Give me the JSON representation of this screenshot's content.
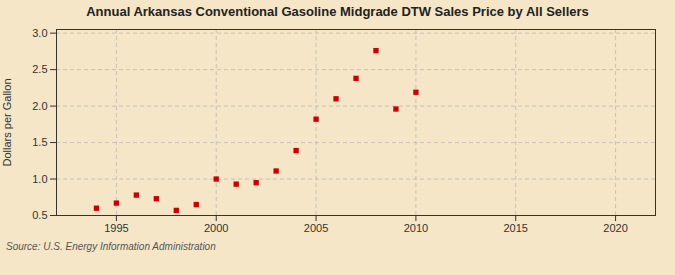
{
  "chart_data": {
    "type": "scatter",
    "title": "Annual Arkansas Conventional Gasoline Midgrade DTW Sales Price by All Sellers",
    "ylabel": "Dollars per Gallon",
    "source": "Source: U.S. Energy Information Administration",
    "x": [
      1994,
      1995,
      1996,
      1997,
      1998,
      1999,
      2000,
      2001,
      2002,
      2003,
      2004,
      2005,
      2006,
      2007,
      2008,
      2009,
      2010
    ],
    "values": [
      0.6,
      0.67,
      0.78,
      0.73,
      0.57,
      0.65,
      1.0,
      0.93,
      0.95,
      1.11,
      1.39,
      1.82,
      2.1,
      2.38,
      2.76,
      1.96,
      2.19
    ],
    "color": "#cc0000",
    "marker": "square",
    "xlim": [
      1992,
      2022
    ],
    "xticks": [
      1995,
      2000,
      2005,
      2010,
      2015,
      2020
    ],
    "ylim": [
      0.5,
      3.05
    ],
    "yticks": [
      0.5,
      {
        "value": 1.0,
        "label": "1.0"
      },
      1.5,
      {
        "value": 2.0,
        "label": "2.0"
      },
      2.5,
      {
        "value": 3.0,
        "label": "3.0"
      }
    ],
    "grid": true
  }
}
